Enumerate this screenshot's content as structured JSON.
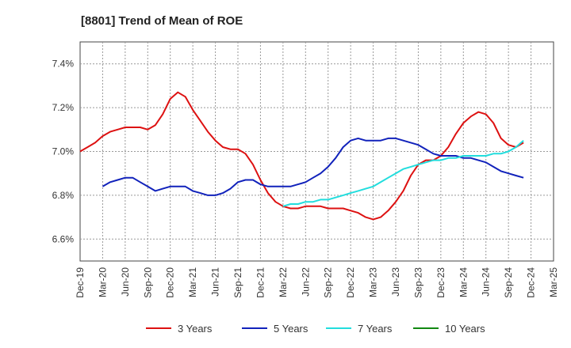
{
  "chart_data": {
    "type": "line",
    "title": "[8801]  Trend of Mean of ROE",
    "xlabel": "",
    "ylabel": "",
    "ylim": [
      6.5,
      7.5
    ],
    "y_ticks": [
      6.6,
      6.8,
      7.0,
      7.2,
      7.4
    ],
    "y_tick_labels": [
      "6.6%",
      "6.8%",
      "7.0%",
      "7.2%",
      "7.4%"
    ],
    "x_tick_labels": [
      "Dec-19",
      "Mar-20",
      "Jun-20",
      "Sep-20",
      "Dec-20",
      "Mar-21",
      "Jun-21",
      "Sep-21",
      "Dec-21",
      "Mar-22",
      "Jun-22",
      "Sep-22",
      "Dec-22",
      "Mar-23",
      "Jun-23",
      "Sep-23",
      "Dec-23",
      "Mar-24",
      "Jun-24",
      "Sep-24",
      "Dec-24",
      "Mar-25"
    ],
    "grid": true,
    "legend_position": "bottom",
    "series": [
      {
        "name": "3 Years",
        "color": "#dd1111",
        "points": [
          [
            0,
            7.0
          ],
          [
            1,
            7.02
          ],
          [
            2,
            7.04
          ],
          [
            3,
            7.07
          ],
          [
            4,
            7.09
          ],
          [
            5,
            7.1
          ],
          [
            6,
            7.11
          ],
          [
            7,
            7.11
          ],
          [
            8,
            7.11
          ],
          [
            9,
            7.1
          ],
          [
            10,
            7.12
          ],
          [
            11,
            7.17
          ],
          [
            12,
            7.24
          ],
          [
            13,
            7.27
          ],
          [
            14,
            7.25
          ],
          [
            15,
            7.19
          ],
          [
            16,
            7.14
          ],
          [
            17,
            7.09
          ],
          [
            18,
            7.05
          ],
          [
            19,
            7.02
          ],
          [
            20,
            7.01
          ],
          [
            21,
            7.01
          ],
          [
            22,
            6.99
          ],
          [
            23,
            6.94
          ],
          [
            24,
            6.87
          ],
          [
            25,
            6.81
          ],
          [
            26,
            6.77
          ],
          [
            27,
            6.75
          ],
          [
            28,
            6.74
          ],
          [
            29,
            6.74
          ],
          [
            30,
            6.75
          ],
          [
            31,
            6.75
          ],
          [
            32,
            6.75
          ],
          [
            33,
            6.74
          ],
          [
            34,
            6.74
          ],
          [
            35,
            6.74
          ],
          [
            36,
            6.73
          ],
          [
            37,
            6.72
          ],
          [
            38,
            6.7
          ],
          [
            39,
            6.69
          ],
          [
            40,
            6.7
          ],
          [
            41,
            6.73
          ],
          [
            42,
            6.77
          ],
          [
            43,
            6.82
          ],
          [
            44,
            6.89
          ],
          [
            45,
            6.94
          ],
          [
            46,
            6.96
          ],
          [
            47,
            6.96
          ],
          [
            48,
            6.98
          ],
          [
            49,
            7.02
          ],
          [
            50,
            7.08
          ],
          [
            51,
            7.13
          ],
          [
            52,
            7.16
          ],
          [
            53,
            7.18
          ],
          [
            54,
            7.17
          ],
          [
            55,
            7.13
          ],
          [
            56,
            7.06
          ],
          [
            57,
            7.03
          ],
          [
            58,
            7.02
          ],
          [
            59,
            7.04
          ]
        ]
      },
      {
        "name": "5 Years",
        "color": "#1122bb",
        "points": [
          [
            3,
            6.84
          ],
          [
            4,
            6.86
          ],
          [
            5,
            6.87
          ],
          [
            6,
            6.88
          ],
          [
            7,
            6.88
          ],
          [
            8,
            6.86
          ],
          [
            9,
            6.84
          ],
          [
            10,
            6.82
          ],
          [
            11,
            6.83
          ],
          [
            12,
            6.84
          ],
          [
            13,
            6.84
          ],
          [
            14,
            6.84
          ],
          [
            15,
            6.82
          ],
          [
            16,
            6.81
          ],
          [
            17,
            6.8
          ],
          [
            18,
            6.8
          ],
          [
            19,
            6.81
          ],
          [
            20,
            6.83
          ],
          [
            21,
            6.86
          ],
          [
            22,
            6.87
          ],
          [
            23,
            6.87
          ],
          [
            24,
            6.85
          ],
          [
            25,
            6.84
          ],
          [
            26,
            6.84
          ],
          [
            27,
            6.84
          ],
          [
            28,
            6.84
          ],
          [
            29,
            6.85
          ],
          [
            30,
            6.86
          ],
          [
            31,
            6.88
          ],
          [
            32,
            6.9
          ],
          [
            33,
            6.93
          ],
          [
            34,
            6.97
          ],
          [
            35,
            7.02
          ],
          [
            36,
            7.05
          ],
          [
            37,
            7.06
          ],
          [
            38,
            7.05
          ],
          [
            39,
            7.05
          ],
          [
            40,
            7.05
          ],
          [
            41,
            7.06
          ],
          [
            42,
            7.06
          ],
          [
            43,
            7.05
          ],
          [
            44,
            7.04
          ],
          [
            45,
            7.03
          ],
          [
            46,
            7.01
          ],
          [
            47,
            6.99
          ],
          [
            48,
            6.98
          ],
          [
            49,
            6.98
          ],
          [
            50,
            6.98
          ],
          [
            51,
            6.97
          ],
          [
            52,
            6.97
          ],
          [
            53,
            6.96
          ],
          [
            54,
            6.95
          ],
          [
            55,
            6.93
          ],
          [
            56,
            6.91
          ],
          [
            57,
            6.9
          ],
          [
            58,
            6.89
          ],
          [
            59,
            6.88
          ]
        ]
      },
      {
        "name": "7 Years",
        "color": "#22dddd",
        "points": [
          [
            27,
            6.75
          ],
          [
            28,
            6.76
          ],
          [
            29,
            6.76
          ],
          [
            30,
            6.77
          ],
          [
            31,
            6.77
          ],
          [
            32,
            6.78
          ],
          [
            33,
            6.78
          ],
          [
            34,
            6.79
          ],
          [
            35,
            6.8
          ],
          [
            36,
            6.81
          ],
          [
            37,
            6.82
          ],
          [
            38,
            6.83
          ],
          [
            39,
            6.84
          ],
          [
            40,
            6.86
          ],
          [
            41,
            6.88
          ],
          [
            42,
            6.9
          ],
          [
            43,
            6.92
          ],
          [
            44,
            6.93
          ],
          [
            45,
            6.94
          ],
          [
            46,
            6.95
          ],
          [
            47,
            6.96
          ],
          [
            48,
            6.96
          ],
          [
            49,
            6.97
          ],
          [
            50,
            6.97
          ],
          [
            51,
            6.98
          ],
          [
            52,
            6.98
          ],
          [
            53,
            6.98
          ],
          [
            54,
            6.98
          ],
          [
            55,
            6.99
          ],
          [
            56,
            6.99
          ],
          [
            57,
            7.0
          ],
          [
            58,
            7.02
          ],
          [
            59,
            7.05
          ]
        ]
      },
      {
        "name": "10 Years",
        "color": "#118811",
        "points": []
      }
    ]
  }
}
